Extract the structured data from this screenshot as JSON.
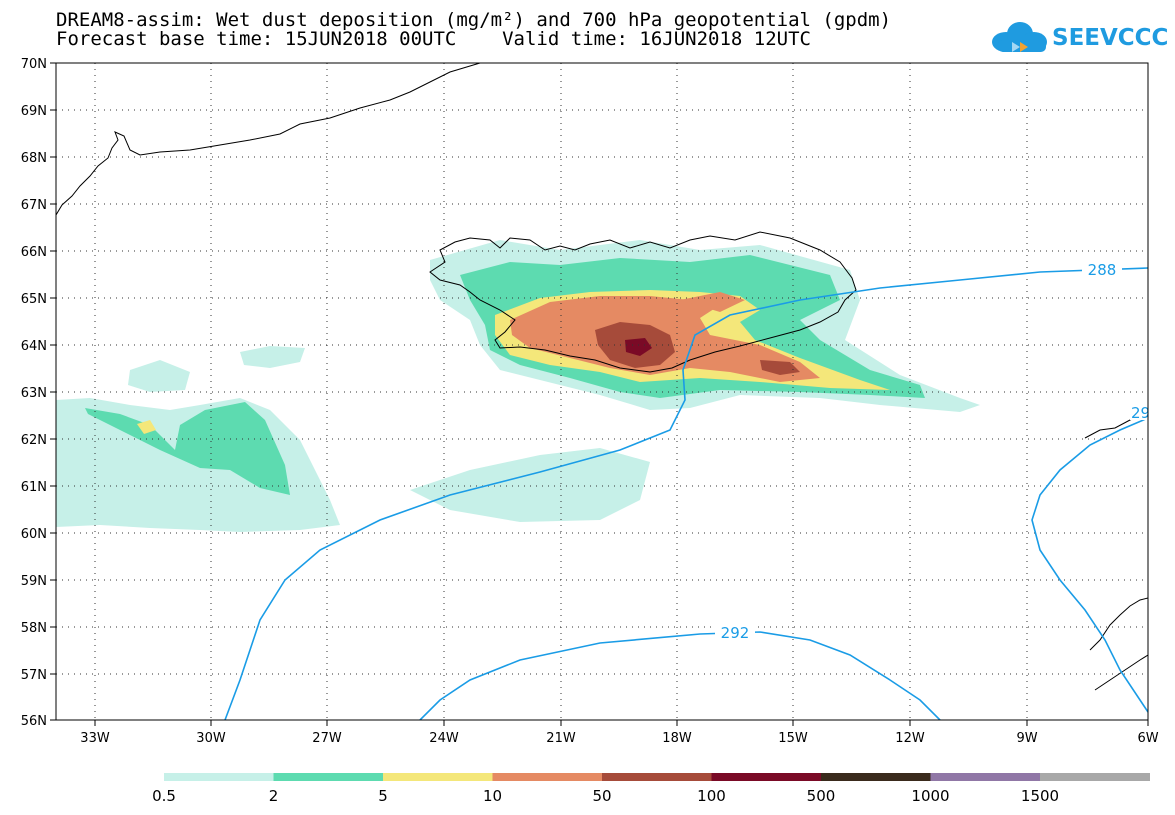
{
  "title": {
    "line1": "DREAM8-assim: Wet dust deposition (mg/m²) and 700 hPa geopotential (gpdm)",
    "line2": "Forecast base time: 15JUN2018 00UTC    Valid time: 16JUN2018 12UTC"
  },
  "logo": {
    "text": "SEEVCCC"
  },
  "map": {
    "lon_range": [
      -34.5,
      -6
    ],
    "lat_range": [
      56,
      70
    ],
    "lat_labels": [
      "70N",
      "69N",
      "68N",
      "67N",
      "66N",
      "65N",
      "64N",
      "63N",
      "62N",
      "61N",
      "60N",
      "59N",
      "58N",
      "57N",
      "56N"
    ],
    "lon_labels": [
      "33W",
      "30W",
      "27W",
      "24W",
      "21W",
      "18W",
      "15W",
      "12W",
      "9W",
      "6W"
    ],
    "grid": "dotted"
  },
  "contours": [
    {
      "label": "288"
    },
    {
      "label": "292"
    },
    {
      "label": "29"
    }
  ],
  "colorbar": {
    "labels": [
      "0.5",
      "2",
      "5",
      "10",
      "50",
      "100",
      "500",
      "1000",
      "1500"
    ],
    "colors": [
      "#c6f0e8",
      "#5ddbb0",
      "#f4e77a",
      "#e58a63",
      "#a64b3a",
      "#7a0a26",
      "#3a2a1c",
      "#9077a6",
      "#a8a8a8"
    ]
  },
  "colors": {
    "contour": "#1a9ce6",
    "accent": "#1f9be0"
  }
}
